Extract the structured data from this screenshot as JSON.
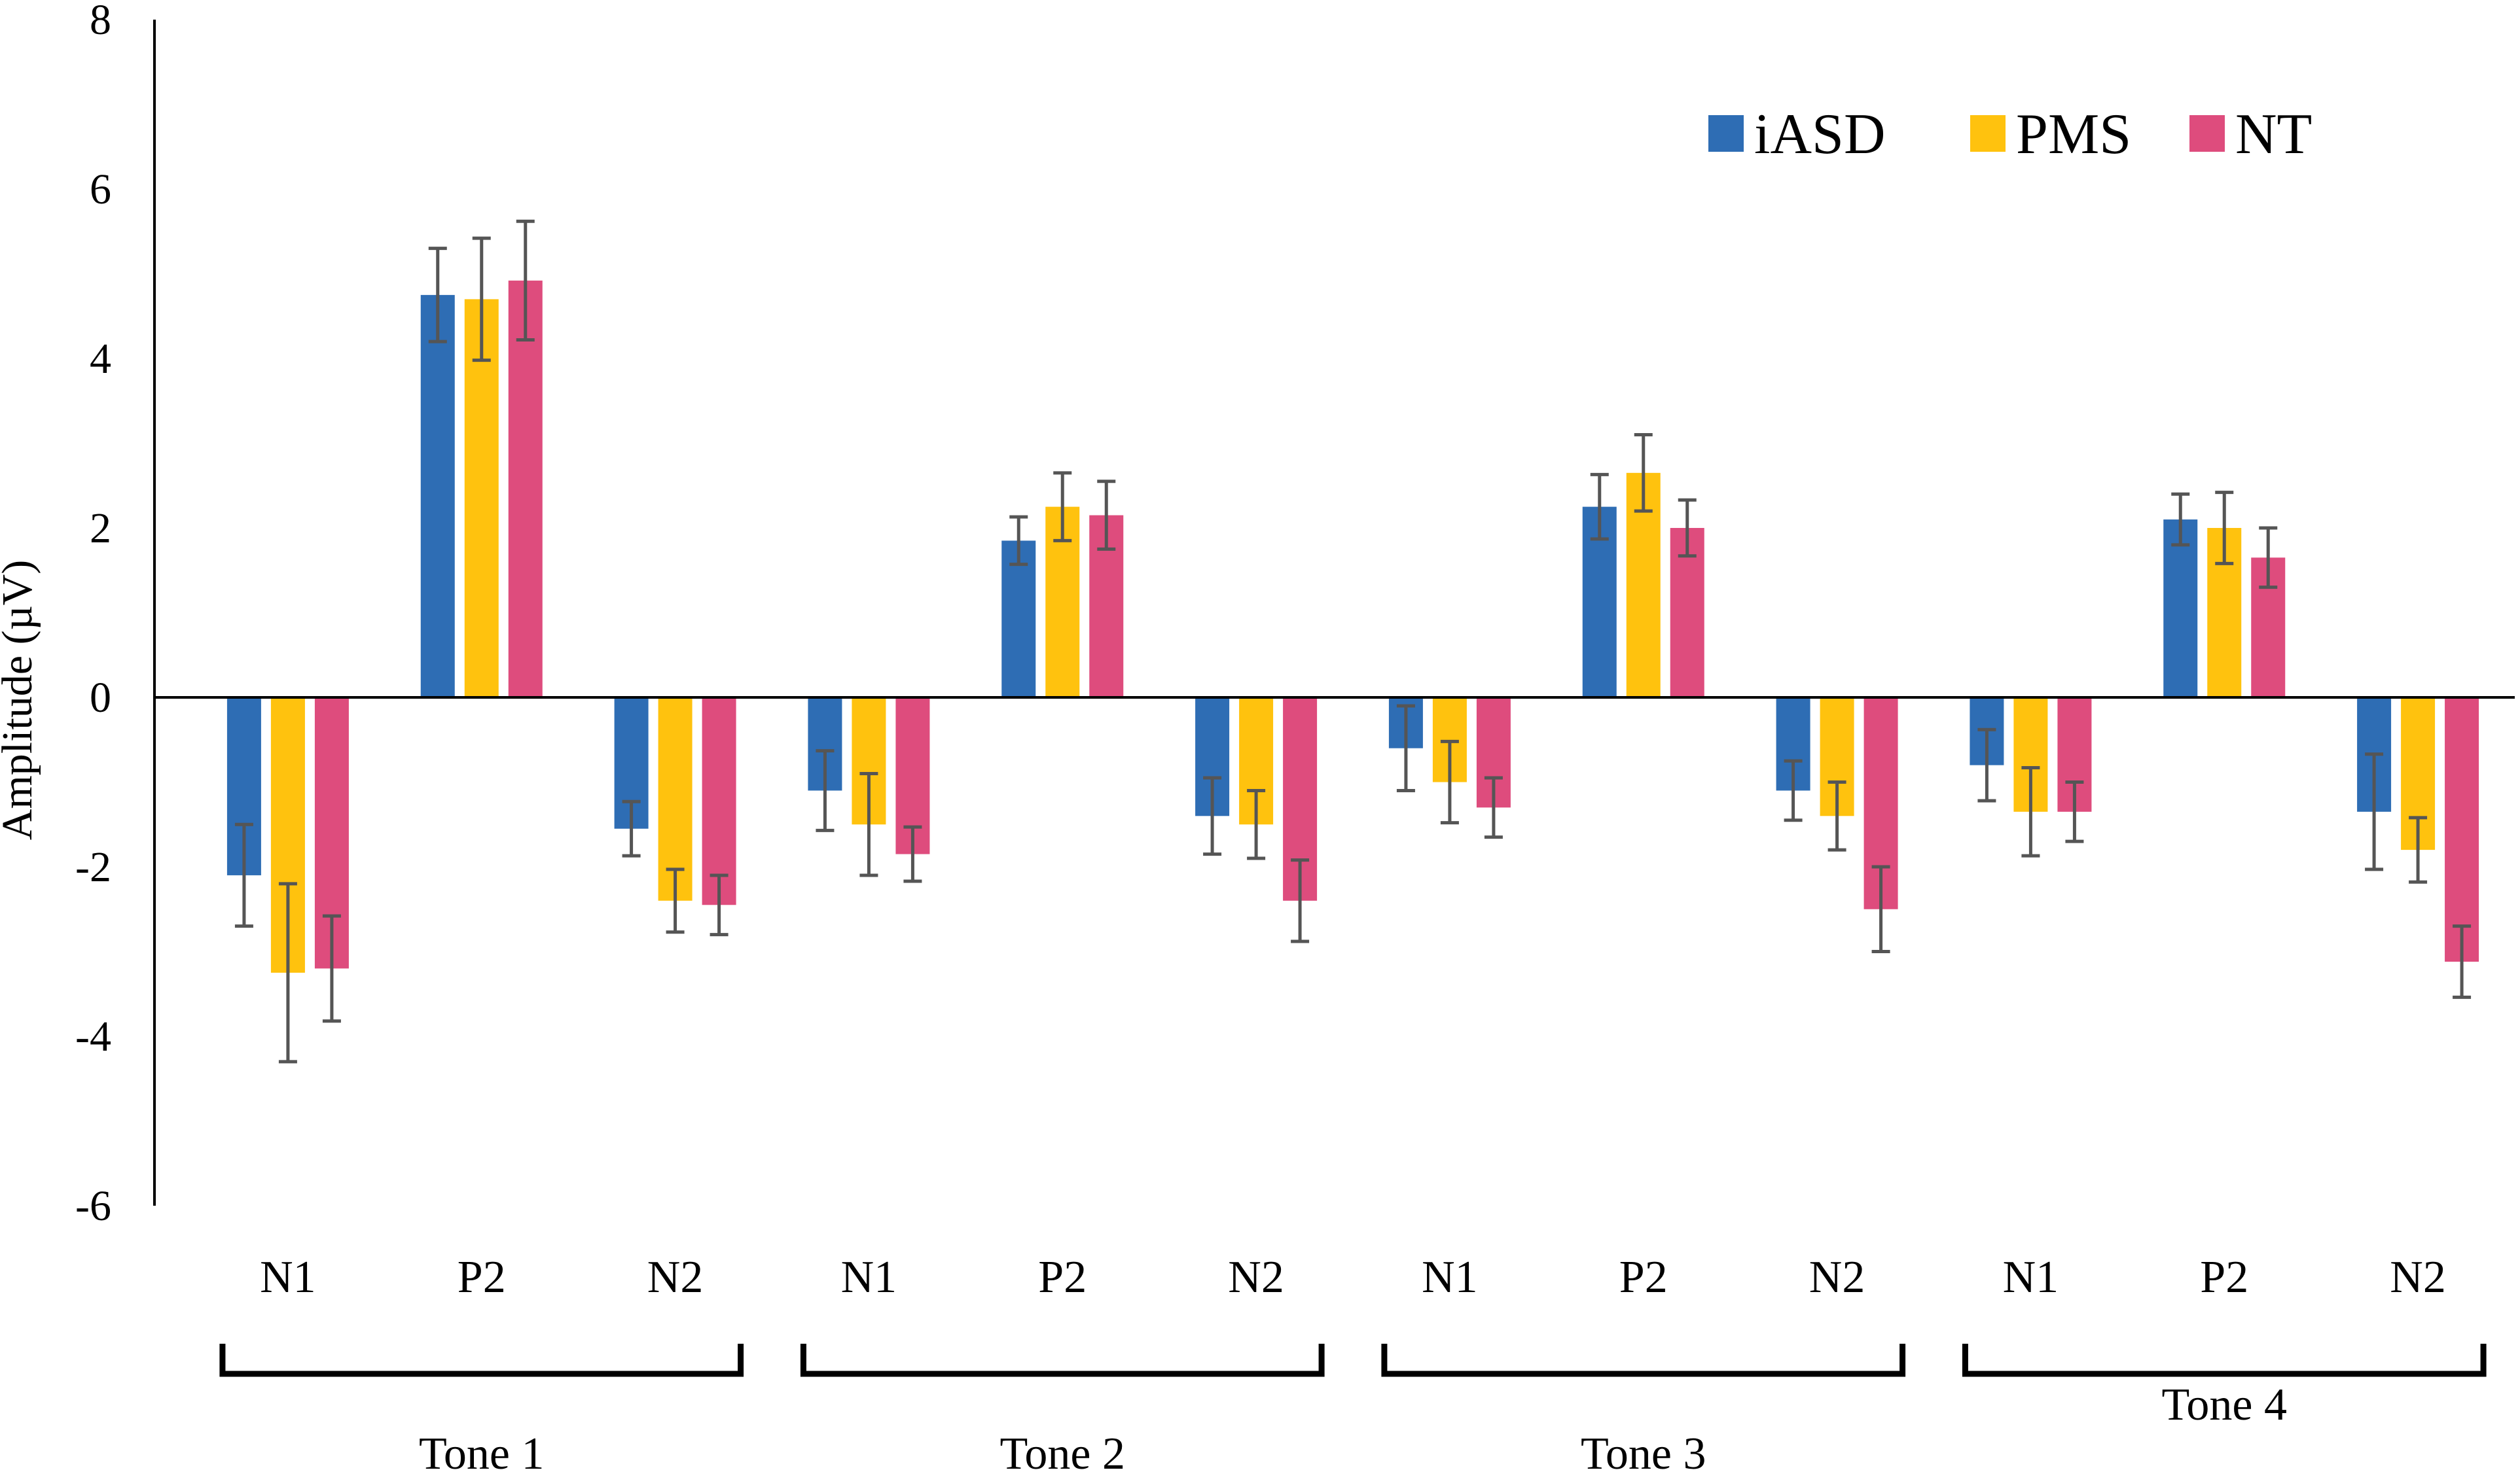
{
  "chart_data": {
    "type": "bar",
    "ylabel": "Amplitude (µV)",
    "xlabel": "",
    "ylim": [
      -6,
      8
    ],
    "yticks": [
      8,
      6,
      4,
      2,
      0,
      -2,
      -4,
      -6
    ],
    "ytick_labels": [
      "8",
      "6",
      "4",
      "2",
      "0",
      "-2",
      "-4",
      "-6"
    ],
    "grid": false,
    "legend_position": "top-right",
    "categories": [
      "N1",
      "P2",
      "N2",
      "N1",
      "P2",
      "N2",
      "N1",
      "P2",
      "N2",
      "N1",
      "P2",
      "N2"
    ],
    "groups": [
      {
        "label": "Tone 1",
        "span": [
          0,
          2
        ]
      },
      {
        "label": "Tone 2",
        "span": [
          3,
          5
        ]
      },
      {
        "label": "Tone 3",
        "span": [
          6,
          8
        ]
      },
      {
        "label": "Tone 4",
        "span": [
          9,
          11
        ]
      }
    ],
    "series": [
      {
        "name": "iASD",
        "color": "#2E6DB4",
        "values": [
          -2.1,
          4.75,
          -1.55,
          -1.1,
          1.85,
          -1.4,
          -0.6,
          2.25,
          -1.1,
          -0.8,
          2.1,
          -1.35
        ],
        "errors": [
          0.6,
          0.55,
          0.32,
          0.47,
          0.28,
          0.45,
          0.5,
          0.38,
          0.35,
          0.42,
          0.3,
          0.68
        ]
      },
      {
        "name": "PMS",
        "color": "#FFC20E",
        "values": [
          -3.25,
          4.7,
          -2.4,
          -1.5,
          2.25,
          -1.5,
          -1.0,
          2.65,
          -1.4,
          -1.35,
          2.0,
          -1.8
        ],
        "errors": [
          1.05,
          0.72,
          0.37,
          0.6,
          0.4,
          0.4,
          0.48,
          0.45,
          0.4,
          0.52,
          0.42,
          0.38
        ]
      },
      {
        "name": "NT",
        "color": "#DE4C7D",
        "values": [
          -3.2,
          4.92,
          -2.45,
          -1.85,
          2.15,
          -2.4,
          -1.3,
          2.0,
          -2.5,
          -1.35,
          1.65,
          -3.12
        ],
        "errors": [
          0.62,
          0.7,
          0.35,
          0.32,
          0.4,
          0.48,
          0.35,
          0.33,
          0.5,
          0.35,
          0.35,
          0.42
        ]
      }
    ]
  }
}
